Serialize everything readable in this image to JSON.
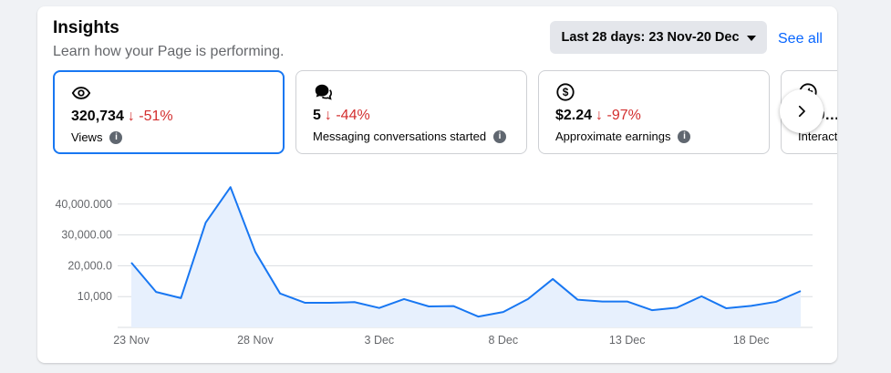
{
  "header": {
    "title": "Insights",
    "subtitle": "Learn how your Page is performing.",
    "date_range_label": "Last 28 days: 23 Nov-20 Dec",
    "see_all_label": "See all"
  },
  "metrics": [
    {
      "value": "320,734",
      "change": "↓ -51%",
      "label": "Views",
      "icon": "eye-icon",
      "selected": true
    },
    {
      "value": "5",
      "change": "↓ -44%",
      "label": "Messaging conversations started",
      "icon": "chat-bubbles-icon"
    },
    {
      "value": "$2.24",
      "change": "↓ -97%",
      "label": "Approximate earnings",
      "icon": "dollar-icon"
    },
    {
      "value": "…,9…",
      "change": "",
      "label": "Interact…",
      "icon": "thumbs-up-icon"
    }
  ],
  "colors": {
    "accent": "#1877f2",
    "negative": "#d32f2f",
    "area_fill": "#e7f0fd",
    "line": "#1877f2"
  },
  "chart_data": {
    "type": "area",
    "x": [
      "23 Nov",
      "24 Nov",
      "25 Nov",
      "26 Nov",
      "27 Nov",
      "28 Nov",
      "29 Nov",
      "30 Nov",
      "1 Dec",
      "2 Dec",
      "3 Dec",
      "4 Dec",
      "5 Dec",
      "6 Dec",
      "7 Dec",
      "8 Dec",
      "9 Dec",
      "10 Dec",
      "11 Dec",
      "12 Dec",
      "13 Dec",
      "14 Dec",
      "15 Dec",
      "16 Dec",
      "17 Dec",
      "18 Dec",
      "19 Dec",
      "20 Dec"
    ],
    "y": [
      21000,
      11500,
      9500,
      34000,
      45500,
      24500,
      11000,
      8000,
      8000,
      8200,
      6300,
      9200,
      6800,
      6900,
      3500,
      5000,
      9200,
      15700,
      9000,
      8400,
      8400,
      5600,
      6400,
      10100,
      6200,
      7000,
      8300,
      11800
    ],
    "x_tick_labels": [
      "23 Nov",
      "28 Nov",
      "3 Dec",
      "8 Dec",
      "13 Dec",
      "18 Dec"
    ],
    "y_tick_labels": [
      "40,000.000",
      "30,000.00",
      "20,000.0",
      "10,000"
    ],
    "y_ticks": [
      40000,
      30000,
      20000,
      10000
    ],
    "ylim": [
      0,
      50000
    ],
    "grid": true,
    "title": "",
    "xlabel": "",
    "ylabel": ""
  }
}
